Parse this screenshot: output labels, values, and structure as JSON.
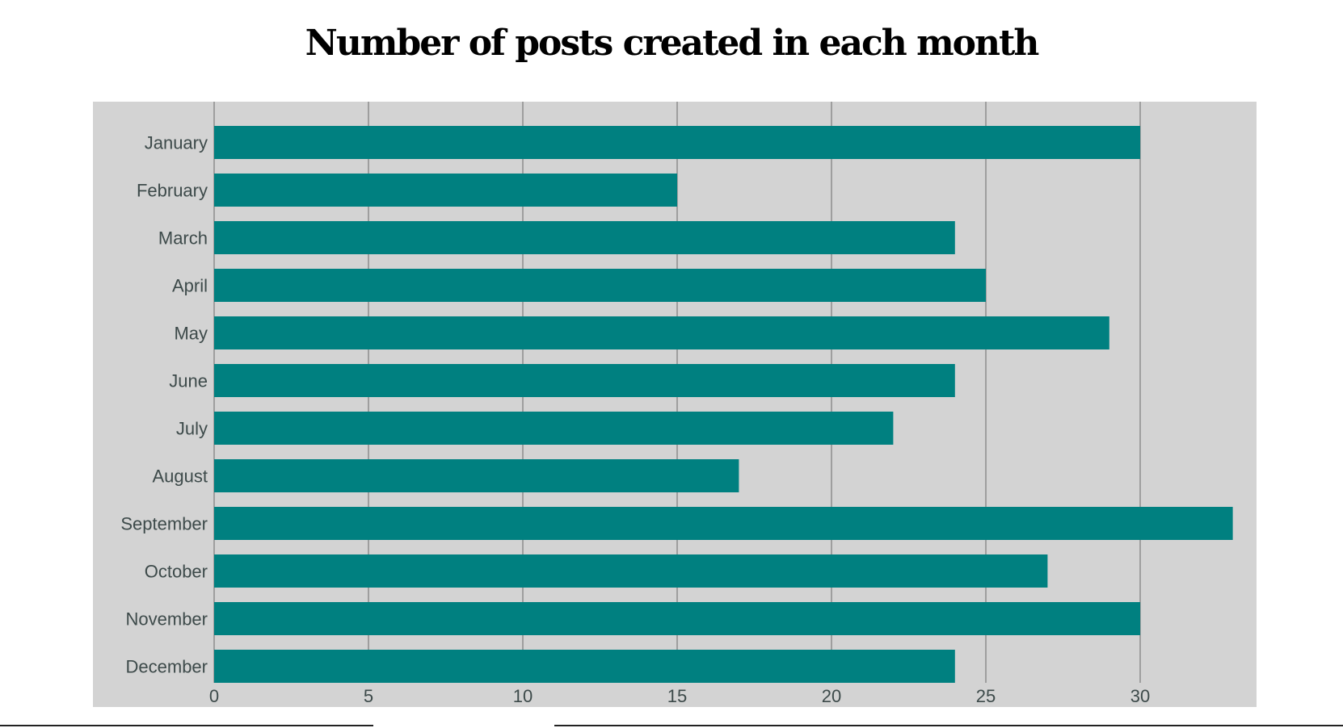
{
  "title": "Number of posts created in each month",
  "colors": {
    "plot_background": "#d3d3d3",
    "bar": "#008080",
    "grid": "#8c8c8c",
    "axis_text": "#3d4a4a"
  },
  "chart_data": {
    "type": "bar",
    "orientation": "horizontal",
    "title": "Number of posts created in each month",
    "xlabel": "",
    "ylabel": "",
    "categories": [
      "January",
      "February",
      "March",
      "April",
      "May",
      "June",
      "July",
      "August",
      "September",
      "October",
      "November",
      "December"
    ],
    "values": [
      30,
      15,
      24,
      25,
      29,
      24,
      22,
      17,
      33,
      27,
      30,
      24
    ],
    "xlim": [
      0,
      34
    ],
    "xticks": [
      0,
      5,
      10,
      15,
      20,
      25,
      30
    ],
    "grid": true,
    "legend": "none"
  }
}
